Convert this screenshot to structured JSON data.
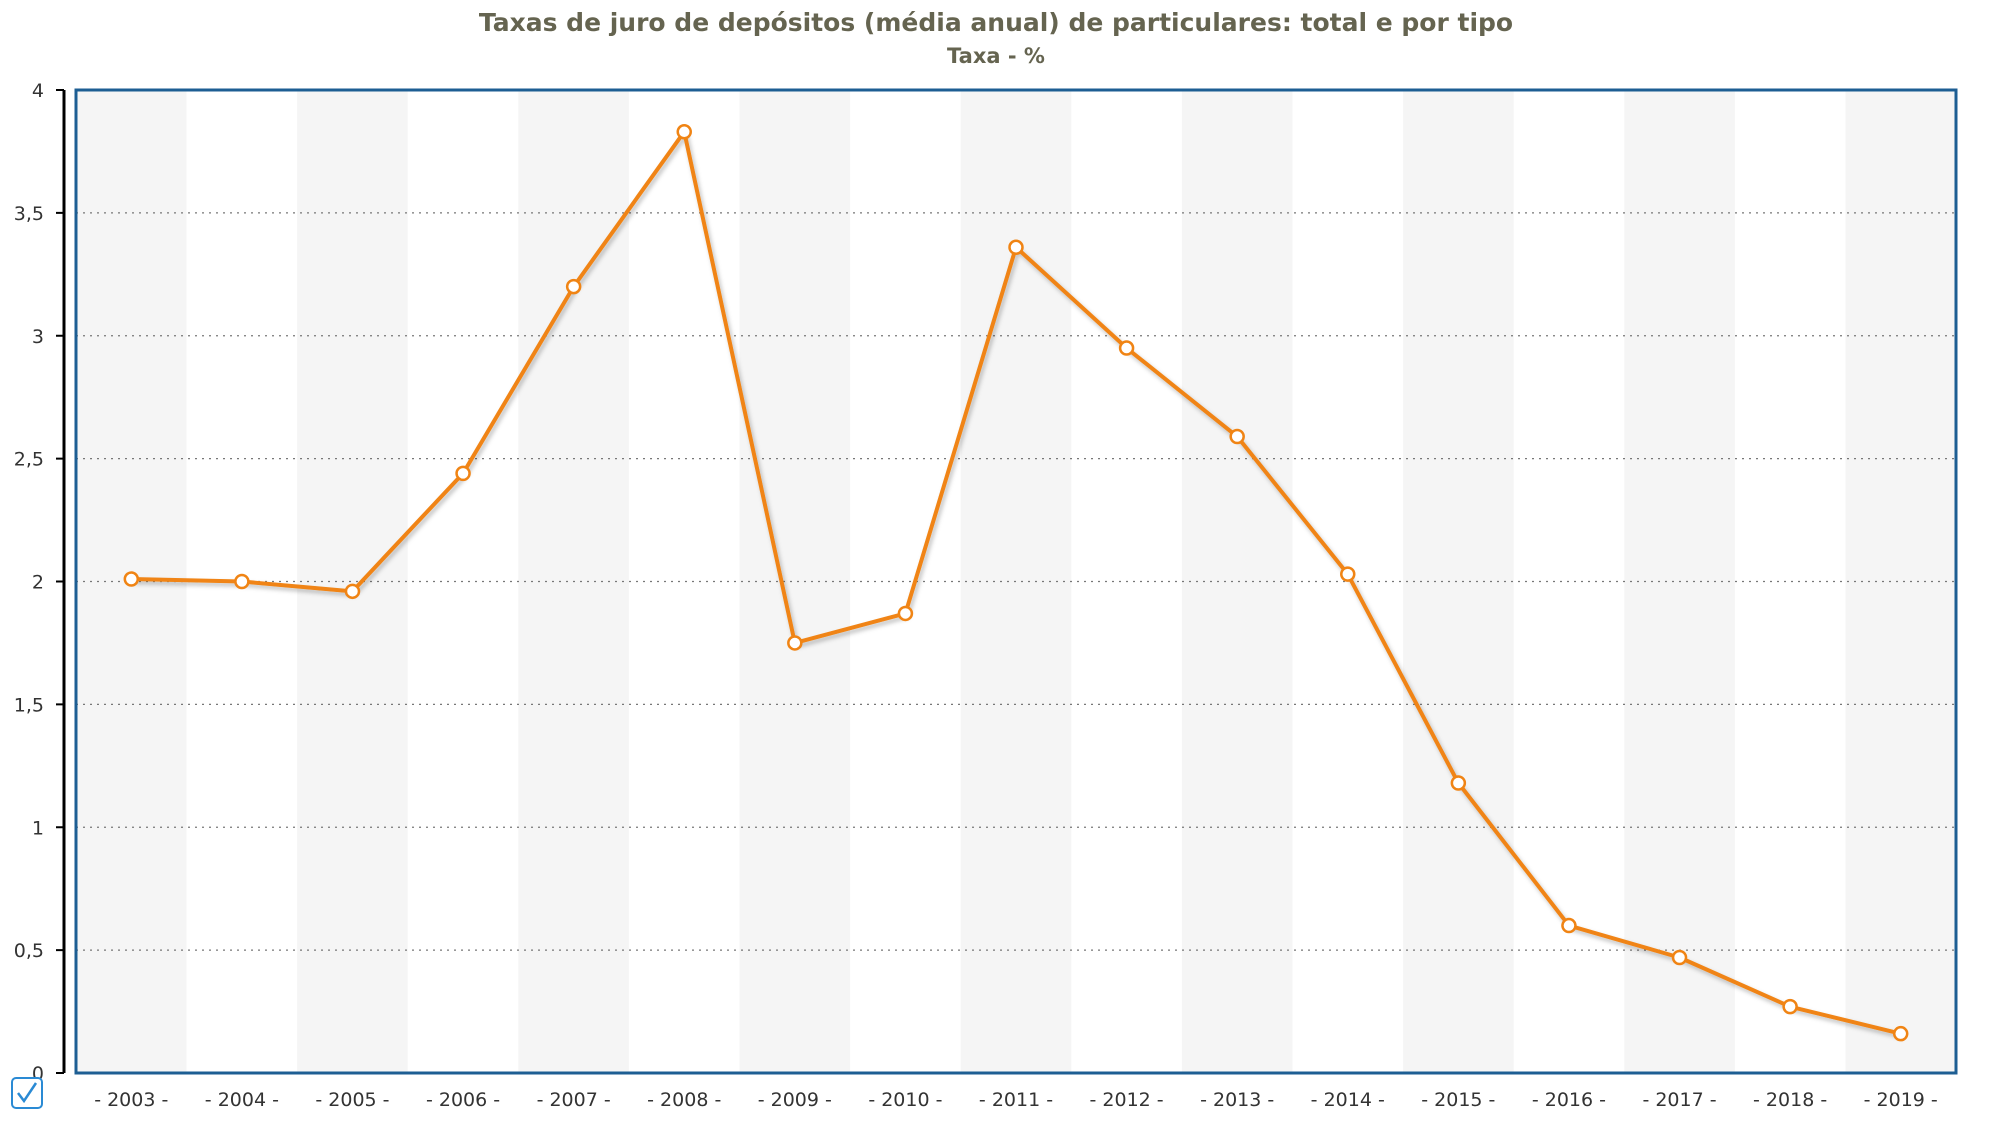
{
  "chart_data": {
    "type": "line",
    "title": "Taxas de juro de depósitos (média anual) de particulares: total e por tipo",
    "subtitle": "Taxa - %",
    "xlabel": "",
    "ylabel": "",
    "categories": [
      "2003",
      "2004",
      "2005",
      "2006",
      "2007",
      "2008",
      "2009",
      "2010",
      "2011",
      "2012",
      "2013",
      "2014",
      "2015",
      "2016",
      "2017",
      "2018",
      "2019"
    ],
    "series": [
      {
        "values": [
          2.01,
          2.0,
          1.96,
          2.44,
          3.2,
          3.83,
          1.75,
          1.87,
          3.36,
          2.95,
          2.59,
          2.03,
          1.18,
          0.6,
          0.47,
          0.27,
          0.16
        ]
      }
    ],
    "ylim": [
      0,
      4
    ],
    "yticks": [
      "0",
      "0,5",
      "1",
      "1,5",
      "2",
      "2,5",
      "3",
      "3,5",
      "4"
    ],
    "ytick_values": [
      0,
      0.5,
      1,
      1.5,
      2,
      2.5,
      3,
      3.5,
      4
    ],
    "grid": "horizontal dotted",
    "colors": {
      "line": "#f08414",
      "frame": "#1d5e93",
      "band": "#f5f5f5",
      "title": "#656450",
      "checkbox": "#2a8ad4"
    }
  }
}
